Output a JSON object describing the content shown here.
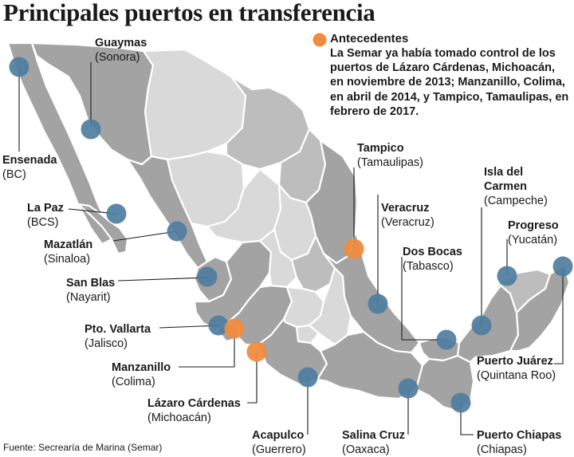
{
  "title": "Principales puertos en transferencia",
  "legend": {
    "color": "#ef8c3f",
    "heading": "Antecedentes",
    "body": "La Semar ya había tomado control de los puertos de Lázaro Cárdenas, Michoacán, en noviembre de 2013; Manzanillo, Colima, en abril de 2014, y Tampico, Tamaulipas, en febrero de 2017."
  },
  "colors": {
    "port": "#4f7d9e",
    "prior_port": "#ef8c3f",
    "region_dark": "#a3a3a3",
    "region_mid": "#bdbdbd",
    "region_light": "#d9d9d9",
    "leader": "#1a1a1a"
  },
  "ports": [
    {
      "name": "Guaymas",
      "state": "(Sonora)",
      "prior": false
    },
    {
      "name": "Ensenada",
      "state": "(BC)",
      "prior": false
    },
    {
      "name": "La Paz",
      "state": "(BCS)",
      "prior": false
    },
    {
      "name": "Mazatlán",
      "state": "(Sinaloa)",
      "prior": false
    },
    {
      "name": "San Blas",
      "state": "(Nayarit)",
      "prior": false
    },
    {
      "name": "Pto. Vallarta",
      "state": "(Jalisco)",
      "prior": false
    },
    {
      "name": "Manzanillo",
      "state": "(Colima)",
      "prior": true
    },
    {
      "name": "Lázaro Cárdenas",
      "state": "(Michoacán)",
      "prior": true
    },
    {
      "name": "Acapulco",
      "state": "(Guerrero)",
      "prior": false
    },
    {
      "name": "Salina Cruz",
      "state": "(Oaxaca)",
      "prior": false
    },
    {
      "name": "Puerto Chiapas",
      "state": "(Chiapas)",
      "prior": false
    },
    {
      "name": "Tampico",
      "state": "(Tamaulipas)",
      "prior": true
    },
    {
      "name": "Veracruz",
      "state": "(Veracruz)",
      "prior": false
    },
    {
      "name": "Dos Bocas",
      "state": "(Tabasco)",
      "prior": false
    },
    {
      "name": "Isla del Carmen",
      "state": "(Campeche)",
      "prior": false
    },
    {
      "name": "Progreso",
      "state": "(Yucatán)",
      "prior": false
    },
    {
      "name": "Puerto Juárez",
      "state": "(Quintana Roo)",
      "prior": false
    }
  ],
  "source": "Fuente: Secrearía de Marina (Semar)"
}
